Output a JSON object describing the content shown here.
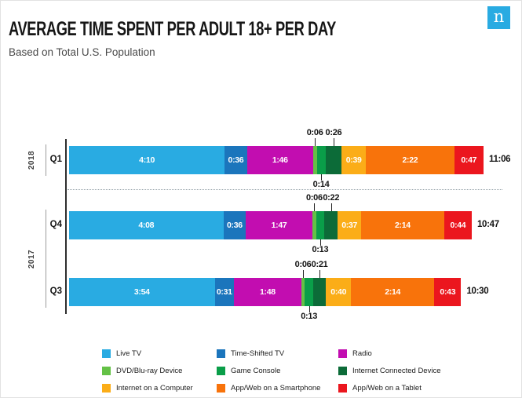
{
  "header": {
    "title": "AVERAGE TIME SPENT PER ADULT 18+ PER DAY",
    "subtitle": "Based on Total U.S. Population",
    "logo_letter": "n",
    "logo_color": "#29ABE2"
  },
  "chart_data": {
    "type": "bar",
    "orientation": "horizontal",
    "stacked": true,
    "unit": "hours:minutes per day",
    "legend_position": "bottom",
    "grid": false,
    "series": [
      {
        "name": "Live TV",
        "color": "#29ABE2",
        "label_position": "inside"
      },
      {
        "name": "Time-Shifted TV",
        "color": "#1B75BC",
        "label_position": "inside"
      },
      {
        "name": "Radio",
        "color": "#C20DB0",
        "label_position": "inside"
      },
      {
        "name": "DVD/Blu-ray Device",
        "color": "#64C146",
        "label_position": "above"
      },
      {
        "name": "Game Console",
        "color": "#0A9E49",
        "label_position": "below"
      },
      {
        "name": "Internet Connected Device",
        "color": "#0C6B38",
        "label_position": "above"
      },
      {
        "name": "Internet on a Computer",
        "color": "#FBAD18",
        "label_position": "inside"
      },
      {
        "name": "App/Web on a Smartphone",
        "color": "#F8730B",
        "label_position": "inside"
      },
      {
        "name": "App/Web on a Tablet",
        "color": "#EB161E",
        "label_position": "inside"
      }
    ],
    "rows": [
      {
        "year": "2018",
        "quarter": "Q1",
        "total_label": "11:06",
        "total_minutes": 666,
        "labels": [
          "4:10",
          "0:36",
          "1:46",
          "0:06",
          "0:14",
          "0:26",
          "0:39",
          "2:22",
          "0:47"
        ],
        "minutes": [
          250,
          36,
          106,
          6,
          14,
          26,
          39,
          142,
          47
        ]
      },
      {
        "year": "2017",
        "quarter": "Q4",
        "total_label": "10:47",
        "total_minutes": 647,
        "labels": [
          "4:08",
          "0:36",
          "1:47",
          "0:06",
          "0:13",
          "0:22",
          "0:37",
          "2:14",
          "0:44"
        ],
        "minutes": [
          248,
          36,
          107,
          6,
          13,
          22,
          37,
          134,
          44
        ]
      },
      {
        "year": "2017",
        "quarter": "Q3",
        "total_label": "10:30",
        "total_minutes": 630,
        "labels": [
          "3:54",
          "0:31",
          "1:48",
          "0:06",
          "0:13",
          "0:21",
          "0:40",
          "2:14",
          "0:43"
        ],
        "minutes": [
          234,
          31,
          108,
          6,
          13,
          21,
          40,
          134,
          43
        ]
      }
    ]
  }
}
